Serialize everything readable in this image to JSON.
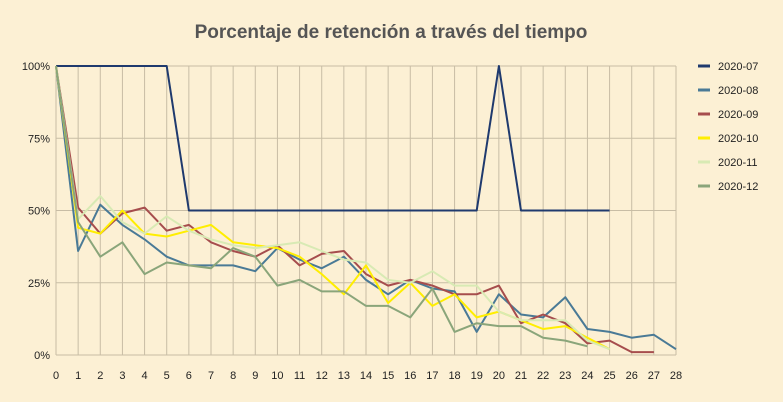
{
  "chart_data": {
    "type": "line",
    "title": "Porcentaje de retención a través del tiempo",
    "xlabel": "",
    "ylabel": "",
    "xlim": [
      0,
      28
    ],
    "ylim": [
      0,
      100
    ],
    "x_ticks": [
      "0",
      "1",
      "2",
      "3",
      "4",
      "5",
      "6",
      "7",
      "8",
      "9",
      "10",
      "11",
      "12",
      "13",
      "14",
      "15",
      "16",
      "17",
      "18",
      "19",
      "20",
      "21",
      "22",
      "23",
      "24",
      "25",
      "26",
      "27",
      "28"
    ],
    "y_ticks": [
      {
        "value": 0,
        "label": "0%"
      },
      {
        "value": 25,
        "label": "25%"
      },
      {
        "value": 50,
        "label": "50%"
      },
      {
        "value": 75,
        "label": "75%"
      },
      {
        "value": 100,
        "label": "100%"
      }
    ],
    "grid": true,
    "legend_position": "right",
    "background": "#fcf0d4",
    "grid_color": "#c8bda5",
    "series": [
      {
        "name": "2020-07",
        "color": "#1f3a6e",
        "values": [
          100,
          100,
          100,
          100,
          100,
          100,
          50,
          50,
          50,
          50,
          50,
          50,
          50,
          50,
          50,
          50,
          50,
          50,
          50,
          50,
          100,
          50,
          50,
          50,
          50,
          50
        ]
      },
      {
        "name": "2020-08",
        "color": "#4a7a96",
        "values": [
          100,
          36,
          52,
          45,
          40,
          34,
          31,
          31,
          31,
          29,
          37,
          33,
          30,
          34,
          26,
          21,
          26,
          23,
          22,
          8,
          21,
          14,
          13,
          20,
          9,
          8,
          6,
          7,
          2
        ]
      },
      {
        "name": "2020-09",
        "color": "#a64d4d",
        "values": [
          100,
          51,
          42,
          49,
          51,
          43,
          45,
          39,
          36,
          34,
          38,
          31,
          35,
          36,
          28,
          24,
          26,
          24,
          21,
          21,
          24,
          11,
          14,
          11,
          4,
          5,
          1,
          1
        ]
      },
      {
        "name": "2020-10",
        "color": "#ffee00",
        "values": [
          100,
          44,
          42,
          50,
          42,
          41,
          43,
          45,
          39,
          38,
          37,
          34,
          28,
          21,
          31,
          18,
          25,
          17,
          21,
          13,
          15,
          12,
          9,
          10,
          6,
          2
        ]
      },
      {
        "name": "2020-11",
        "color": "#d8eab4",
        "values": [
          100,
          47,
          55,
          46,
          42,
          48,
          43,
          40,
          38,
          37,
          38,
          39,
          36,
          33,
          32,
          26,
          25,
          29,
          24,
          24,
          15,
          12,
          12,
          12,
          5,
          2
        ]
      },
      {
        "name": "2020-12",
        "color": "#8aa57a",
        "values": [
          100,
          46,
          34,
          39,
          28,
          32,
          31,
          30,
          37,
          34,
          24,
          26,
          22,
          22,
          17,
          17,
          13,
          23,
          8,
          11,
          10,
          10,
          6,
          5,
          3
        ]
      }
    ]
  }
}
